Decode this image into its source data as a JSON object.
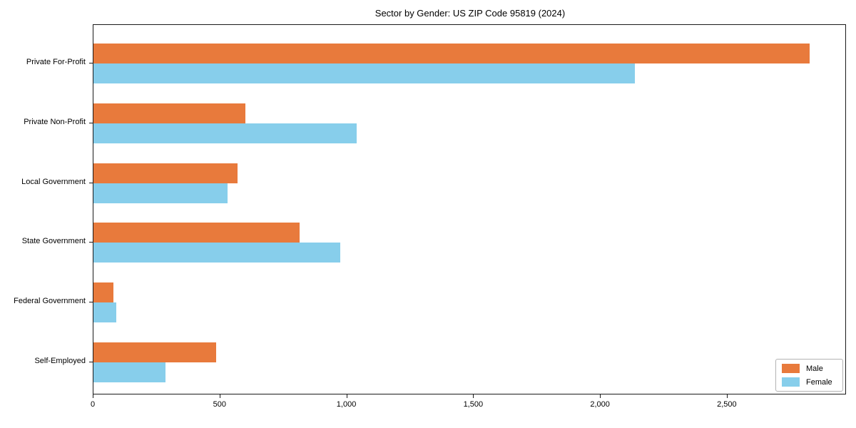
{
  "chart_data": {
    "type": "bar",
    "orientation": "horizontal",
    "title": "Sector by Gender: US ZIP Code 95819 (2024)",
    "categories": [
      "Private For-Profit",
      "Private Non-Profit",
      "Local Government",
      "State Government",
      "Federal Government",
      "Self-Employed"
    ],
    "series": [
      {
        "name": "Male",
        "color": "#e87a3c",
        "values": [
          2830,
          600,
          570,
          815,
          80,
          485
        ]
      },
      {
        "name": "Female",
        "color": "#87ceeb",
        "values": [
          2140,
          1040,
          530,
          975,
          90,
          285
        ]
      }
    ],
    "xlabel": "",
    "ylabel": "",
    "xlim": [
      0,
      2970
    ],
    "x_ticks": [
      0,
      500,
      1000,
      1500,
      2000,
      2500
    ],
    "x_tick_labels": [
      "0",
      "500",
      "1,000",
      "1,500",
      "2,000",
      "2,500"
    ],
    "grid": false,
    "legend": {
      "position": "lower right",
      "entries": [
        "Male",
        "Female"
      ]
    }
  }
}
